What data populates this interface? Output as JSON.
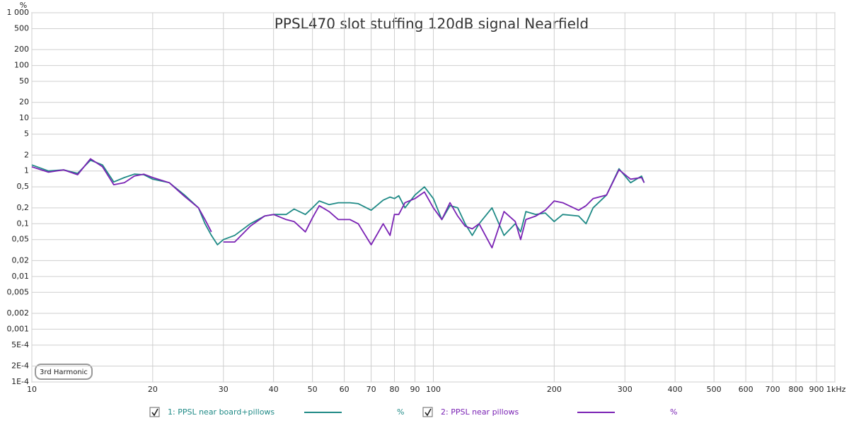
{
  "chart_data": {
    "type": "line",
    "title": "PPSL470 slot stuffing 120dB signal Nearfield",
    "ylabel": "%",
    "annotation": "3rd Harmonic",
    "xscale": "log",
    "yscale": "log",
    "grid": true,
    "legend": "bottom",
    "xlim": [
      10,
      1000
    ],
    "ylim": [
      0.0001,
      1000
    ],
    "xticks": [
      10,
      20,
      30,
      40,
      50,
      60,
      70,
      80,
      90,
      100,
      200,
      300,
      400,
      500,
      600,
      700,
      800,
      900,
      {
        "value": 1000,
        "label": "1kHz"
      }
    ],
    "yticks": [
      {
        "value": 1000,
        "label": "1 000"
      },
      500,
      200,
      100,
      50,
      20,
      10,
      5,
      2,
      1,
      {
        "value": 0.5,
        "label": "0,5"
      },
      {
        "value": 0.2,
        "label": "0,2"
      },
      {
        "value": 0.1,
        "label": "0,1"
      },
      {
        "value": 0.05,
        "label": "0,05"
      },
      {
        "value": 0.02,
        "label": "0,02"
      },
      {
        "value": 0.01,
        "label": "0,01"
      },
      {
        "value": 0.005,
        "label": "0,005"
      },
      {
        "value": 0.002,
        "label": "0,002"
      },
      {
        "value": 0.001,
        "label": "0,001"
      },
      {
        "value": 0.0005,
        "label": "5E-4"
      },
      {
        "value": 0.0002,
        "label": "2E-4"
      },
      {
        "value": 0.0001,
        "label": "1E-4"
      }
    ],
    "x": [
      10,
      11,
      12,
      13,
      14,
      15,
      16,
      17,
      18,
      19,
      20,
      22,
      24,
      26,
      27,
      28,
      29,
      30,
      32,
      35,
      38,
      40,
      43,
      45,
      48,
      50,
      52,
      55,
      58,
      62,
      65,
      70,
      75,
      78,
      80,
      82,
      85,
      90,
      95,
      100,
      105,
      110,
      115,
      120,
      125,
      130,
      140,
      150,
      160,
      165,
      170,
      180,
      190,
      200,
      210,
      230,
      240,
      250,
      270,
      290,
      310,
      330,
      335
    ],
    "series": [
      {
        "name": "1: PPSL near board+pillows",
        "color": "#1f8a86",
        "values": [
          1.3,
          1.0,
          1.05,
          0.9,
          1.6,
          1.3,
          0.62,
          0.75,
          0.87,
          0.85,
          0.7,
          0.6,
          0.35,
          0.2,
          0.1,
          0.06,
          0.04,
          0.05,
          0.06,
          0.1,
          0.14,
          0.15,
          0.15,
          0.19,
          0.15,
          0.2,
          0.27,
          0.23,
          0.25,
          0.25,
          0.24,
          0.18,
          0.28,
          0.32,
          0.3,
          0.34,
          0.2,
          0.35,
          0.5,
          0.3,
          0.12,
          0.22,
          0.2,
          0.1,
          0.06,
          0.1,
          0.2,
          0.06,
          0.1,
          0.07,
          0.17,
          0.15,
          0.16,
          0.11,
          0.15,
          0.14,
          0.1,
          0.2,
          0.35,
          1.1,
          0.6,
          0.8,
          0.6
        ]
      },
      {
        "name": "2: PPSL near pillows",
        "color": "#7a22b4",
        "values": [
          1.2,
          0.95,
          1.05,
          0.85,
          1.7,
          1.2,
          0.55,
          0.6,
          0.8,
          0.87,
          0.75,
          0.6,
          0.33,
          0.2,
          0.12,
          0.07,
          null,
          0.045,
          0.045,
          0.09,
          0.14,
          0.15,
          0.12,
          0.11,
          0.07,
          0.13,
          0.22,
          0.17,
          0.12,
          0.12,
          0.1,
          0.04,
          0.1,
          0.06,
          0.15,
          0.15,
          0.25,
          0.3,
          0.4,
          0.2,
          0.12,
          0.25,
          0.14,
          0.09,
          0.08,
          0.1,
          0.035,
          0.17,
          0.11,
          0.05,
          0.12,
          0.14,
          0.18,
          0.27,
          0.25,
          0.18,
          0.22,
          0.3,
          0.35,
          1.05,
          0.7,
          0.75,
          0.6
        ]
      }
    ]
  }
}
